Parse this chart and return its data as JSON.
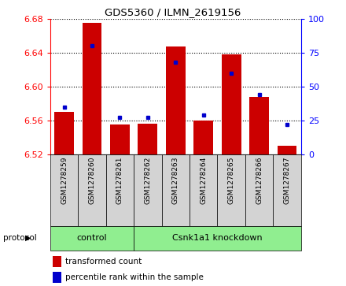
{
  "title": "GDS5360 / ILMN_2619156",
  "samples": [
    "GSM1278259",
    "GSM1278260",
    "GSM1278261",
    "GSM1278262",
    "GSM1278263",
    "GSM1278264",
    "GSM1278265",
    "GSM1278266",
    "GSM1278267"
  ],
  "transformed_counts": [
    6.57,
    6.675,
    6.555,
    6.556,
    6.647,
    6.56,
    6.638,
    6.588,
    6.53
  ],
  "percentile_ranks": [
    35,
    80,
    27,
    27,
    68,
    29,
    60,
    44,
    22
  ],
  "ylim_left": [
    6.52,
    6.68
  ],
  "ylim_right": [
    0,
    100
  ],
  "yticks_left": [
    6.52,
    6.56,
    6.6,
    6.64,
    6.68
  ],
  "yticks_right": [
    0,
    25,
    50,
    75,
    100
  ],
  "bar_color": "#cc0000",
  "dot_color": "#0000cc",
  "bar_bottom": 6.52,
  "ctrl_count": 3,
  "knockdown_count": 6,
  "group_labels": [
    "control",
    "Csnk1a1 knockdown"
  ],
  "group_color": "#90ee90",
  "protocol_label": "protocol",
  "legend_bar_label": "transformed count",
  "legend_dot_label": "percentile rank within the sample",
  "label_bg_color": "#d3d3d3",
  "plot_bg": "#ffffff"
}
